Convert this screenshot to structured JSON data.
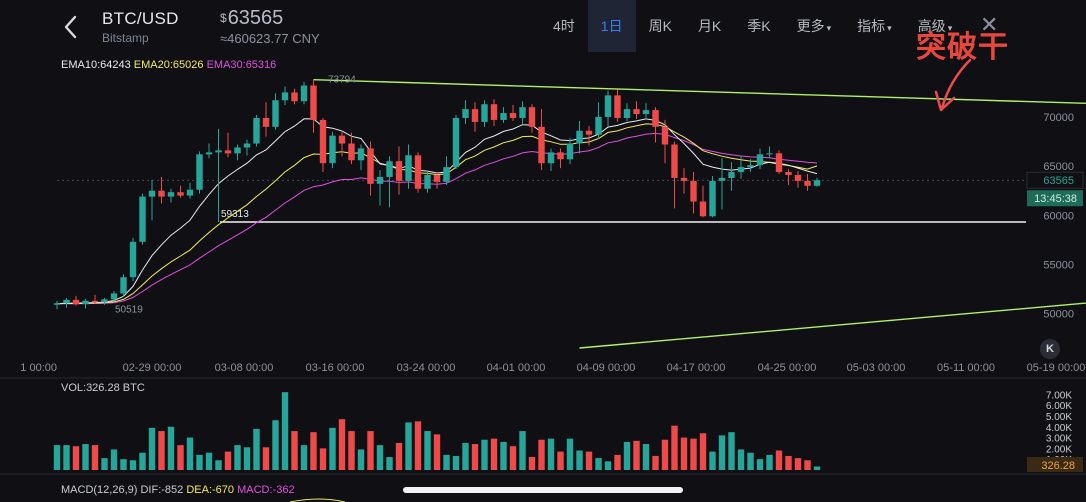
{
  "header": {
    "pair": "BTC/USD",
    "exchange": "Bitstamp",
    "currency_symbol": "$",
    "price": "63565",
    "cny": "≈460623.77 CNY",
    "tabs": [
      {
        "label": "4时",
        "active": false,
        "dropdown": false
      },
      {
        "label": "1日",
        "active": true,
        "dropdown": false
      },
      {
        "label": "周K",
        "active": false,
        "dropdown": false
      },
      {
        "label": "月K",
        "active": false,
        "dropdown": false
      },
      {
        "label": "季K",
        "active": false,
        "dropdown": false
      },
      {
        "label": "更多",
        "active": false,
        "dropdown": true
      },
      {
        "label": "指标",
        "active": false,
        "dropdown": true
      },
      {
        "label": "高级",
        "active": false,
        "dropdown": true
      }
    ],
    "close_icon": "close-icon",
    "back_icon": "back-arrow-icon"
  },
  "annotation": {
    "text": "突破干",
    "color": "#e8473e"
  },
  "indicators": {
    "ema10_label": "EMA10:64243",
    "ema20_label": "EMA20:65026",
    "ema30_label": "EMA30:65316",
    "vol_label": "VOL:326.28 BTC",
    "macd_label": "MACD(12,26,9)",
    "dif_label": "DIF:-852",
    "dea_label": "DEA:-670",
    "macd_value_label": "MACD:-362"
  },
  "colors": {
    "up": "#26a69a",
    "down": "#ef4a4a",
    "ema10": "#e9ebef",
    "ema20": "#f3ec5c",
    "ema30": "#e04fe0",
    "trendline": "#b4f06a",
    "background": "#101014",
    "price_tag": "#1f6b59"
  },
  "chart_data": {
    "type": "candlestick",
    "x_tick_labels": [
      "1 00:00",
      "02-29 00:00",
      "03-08 00:00",
      "03-16 00:00",
      "03-24 00:00",
      "04-01 00:00",
      "04-09 00:00",
      "04-17 00:00",
      "04-25 00:00",
      "05-03 00:00",
      "05-11 00:00",
      "05-19 00:00"
    ],
    "y_ticks": [
      50000,
      55000,
      60000,
      65000,
      70000
    ],
    "y_tick_labels": [
      "50000",
      "55000",
      "60000",
      "65000",
      "70000"
    ],
    "ylim": [
      46500,
      76000
    ],
    "current_price_label": "63565",
    "current_price": 63565,
    "countdown_label": "13:45:38",
    "high_label": "73794",
    "low_label": "50519",
    "support_label": "59313",
    "support_level": 59313,
    "candles": [
      {
        "o": 50900,
        "h": 51300,
        "l": 50450,
        "c": 51050
      },
      {
        "o": 51050,
        "h": 51600,
        "l": 50600,
        "c": 51400
      },
      {
        "o": 51400,
        "h": 51800,
        "l": 50800,
        "c": 50950
      },
      {
        "o": 50950,
        "h": 51500,
        "l": 50519,
        "c": 51300
      },
      {
        "o": 51300,
        "h": 51900,
        "l": 51000,
        "c": 51150
      },
      {
        "o": 51150,
        "h": 51600,
        "l": 50900,
        "c": 51450
      },
      {
        "o": 51450,
        "h": 52300,
        "l": 51200,
        "c": 52050
      },
      {
        "o": 52050,
        "h": 54000,
        "l": 51700,
        "c": 53700
      },
      {
        "o": 53700,
        "h": 57700,
        "l": 53300,
        "c": 57300
      },
      {
        "o": 57300,
        "h": 62200,
        "l": 57000,
        "c": 61900
      },
      {
        "o": 61900,
        "h": 63600,
        "l": 59500,
        "c": 62500
      },
      {
        "o": 62500,
        "h": 63900,
        "l": 61200,
        "c": 61900
      },
      {
        "o": 61900,
        "h": 62700,
        "l": 61300,
        "c": 62350
      },
      {
        "o": 62350,
        "h": 63000,
        "l": 61800,
        "c": 62000
      },
      {
        "o": 62000,
        "h": 63300,
        "l": 61700,
        "c": 62600
      },
      {
        "o": 62600,
        "h": 66500,
        "l": 62200,
        "c": 66200
      },
      {
        "o": 66200,
        "h": 67300,
        "l": 65800,
        "c": 66400
      },
      {
        "o": 66400,
        "h": 68800,
        "l": 59313,
        "c": 66600
      },
      {
        "o": 66600,
        "h": 68400,
        "l": 65900,
        "c": 66300
      },
      {
        "o": 66300,
        "h": 67200,
        "l": 65600,
        "c": 66900
      },
      {
        "o": 66900,
        "h": 67700,
        "l": 66100,
        "c": 67300
      },
      {
        "o": 67300,
        "h": 70200,
        "l": 67000,
        "c": 69900
      },
      {
        "o": 69900,
        "h": 71500,
        "l": 68000,
        "c": 69000
      },
      {
        "o": 69000,
        "h": 72400,
        "l": 68700,
        "c": 71700
      },
      {
        "o": 71700,
        "h": 73100,
        "l": 71200,
        "c": 72500
      },
      {
        "o": 72500,
        "h": 72900,
        "l": 71300,
        "c": 71600
      },
      {
        "o": 71600,
        "h": 73600,
        "l": 71300,
        "c": 73200
      },
      {
        "o": 73200,
        "h": 73794,
        "l": 68400,
        "c": 69700
      },
      {
        "o": 69700,
        "h": 69900,
        "l": 64400,
        "c": 65300
      },
      {
        "o": 65300,
        "h": 68500,
        "l": 64800,
        "c": 68100
      },
      {
        "o": 68100,
        "h": 68600,
        "l": 66000,
        "c": 67300
      },
      {
        "o": 67300,
        "h": 68400,
        "l": 65200,
        "c": 65600
      },
      {
        "o": 65600,
        "h": 67200,
        "l": 64600,
        "c": 66800
      },
      {
        "o": 66800,
        "h": 67500,
        "l": 62000,
        "c": 63200
      },
      {
        "o": 63200,
        "h": 64600,
        "l": 61000,
        "c": 63900
      },
      {
        "o": 63900,
        "h": 66000,
        "l": 60800,
        "c": 65500
      },
      {
        "o": 65500,
        "h": 67000,
        "l": 62100,
        "c": 63500
      },
      {
        "o": 63500,
        "h": 67200,
        "l": 62700,
        "c": 66100
      },
      {
        "o": 66100,
        "h": 66400,
        "l": 62300,
        "c": 62700
      },
      {
        "o": 62700,
        "h": 64500,
        "l": 62300,
        "c": 64100
      },
      {
        "o": 64100,
        "h": 64400,
        "l": 62700,
        "c": 63400
      },
      {
        "o": 63400,
        "h": 66000,
        "l": 63100,
        "c": 64900
      },
      {
        "o": 64900,
        "h": 70200,
        "l": 64700,
        "c": 69900
      },
      {
        "o": 69900,
        "h": 71700,
        "l": 69300,
        "c": 70800
      },
      {
        "o": 70800,
        "h": 71500,
        "l": 68500,
        "c": 69500
      },
      {
        "o": 69500,
        "h": 71700,
        "l": 69000,
        "c": 71300
      },
      {
        "o": 71300,
        "h": 71800,
        "l": 69100,
        "c": 69700
      },
      {
        "o": 69700,
        "h": 71000,
        "l": 69400,
        "c": 70400
      },
      {
        "o": 70400,
        "h": 71200,
        "l": 69600,
        "c": 69900
      },
      {
        "o": 69900,
        "h": 71600,
        "l": 69300,
        "c": 71000
      },
      {
        "o": 71000,
        "h": 71300,
        "l": 68400,
        "c": 69000
      },
      {
        "o": 69000,
        "h": 70800,
        "l": 64600,
        "c": 65300
      },
      {
        "o": 65300,
        "h": 66800,
        "l": 64500,
        "c": 66400
      },
      {
        "o": 66400,
        "h": 66800,
        "l": 64800,
        "c": 65700
      },
      {
        "o": 65700,
        "h": 67900,
        "l": 65200,
        "c": 67300
      },
      {
        "o": 67300,
        "h": 69600,
        "l": 66300,
        "c": 68600
      },
      {
        "o": 68600,
        "h": 69100,
        "l": 67100,
        "c": 68200
      },
      {
        "o": 68200,
        "h": 71500,
        "l": 67800,
        "c": 70000
      },
      {
        "o": 70000,
        "h": 72700,
        "l": 69000,
        "c": 72200
      },
      {
        "o": 72200,
        "h": 72800,
        "l": 69500,
        "c": 69900
      },
      {
        "o": 69900,
        "h": 71400,
        "l": 69600,
        "c": 70800
      },
      {
        "o": 70800,
        "h": 71600,
        "l": 69800,
        "c": 70300
      },
      {
        "o": 70300,
        "h": 71400,
        "l": 69700,
        "c": 70700
      },
      {
        "o": 70700,
        "h": 71000,
        "l": 67400,
        "c": 69000
      },
      {
        "o": 69000,
        "h": 69700,
        "l": 65300,
        "c": 67200
      },
      {
        "o": 67200,
        "h": 67500,
        "l": 60700,
        "c": 63800
      },
      {
        "o": 63800,
        "h": 64800,
        "l": 62200,
        "c": 63500
      },
      {
        "o": 63500,
        "h": 64400,
        "l": 60200,
        "c": 61400
      },
      {
        "o": 61400,
        "h": 63000,
        "l": 59800,
        "c": 59900
      },
      {
        "o": 59900,
        "h": 64000,
        "l": 59800,
        "c": 63500
      },
      {
        "o": 63500,
        "h": 65800,
        "l": 60600,
        "c": 63800
      },
      {
        "o": 63800,
        "h": 65400,
        "l": 62500,
        "c": 64400
      },
      {
        "o": 64400,
        "h": 66000,
        "l": 63700,
        "c": 64900
      },
      {
        "o": 64900,
        "h": 65700,
        "l": 64400,
        "c": 65100
      },
      {
        "o": 65100,
        "h": 66800,
        "l": 64700,
        "c": 66200
      },
      {
        "o": 66200,
        "h": 67000,
        "l": 65800,
        "c": 66300
      },
      {
        "o": 66300,
        "h": 66600,
        "l": 64200,
        "c": 64400
      },
      {
        "o": 64400,
        "h": 64700,
        "l": 63100,
        "c": 64100
      },
      {
        "o": 64100,
        "h": 64500,
        "l": 62800,
        "c": 63500
      },
      {
        "o": 63500,
        "h": 64200,
        "l": 62500,
        "c": 63000
      },
      {
        "o": 63000,
        "h": 63800,
        "l": 62900,
        "c": 63565
      }
    ],
    "ema10": [
      51000,
      51070,
      51050,
      51100,
      51110,
      51170,
      51330,
      51760,
      52770,
      54430,
      55900,
      57000,
      57970,
      58700,
      59500,
      60900,
      62100,
      63220,
      64000,
      64670,
      65300,
      66140,
      66650,
      67570,
      68510,
      69070,
      69820,
      69800,
      69000,
      68860,
      68570,
      68030,
      67810,
      66520,
      65230,
      65060,
      64780,
      65020,
      64600,
      64500,
      64300,
      64400,
      65400,
      66400,
      66930,
      67730,
      68070,
      68530,
      68780,
      69210,
      69170,
      68470,
      68090,
      67660,
      67600,
      67780,
      67860,
      68250,
      68970,
      69140,
      69440,
      69600,
      69800,
      69650,
      69200,
      68200,
      67300,
      66300,
      65200,
      64900,
      64700,
      64600,
      64700,
      64800,
      65200,
      65400,
      65300,
      65100,
      64800,
      64500,
      64243
    ],
    "ema20": [
      51000,
      51040,
      51030,
      51060,
      51070,
      51100,
      51190,
      51440,
      52030,
      52920,
      53820,
      54570,
      55260,
      55860,
      56460,
      57390,
      58250,
      59040,
      59730,
      60410,
      61070,
      61910,
      62660,
      63520,
      64410,
      65090,
      65870,
      66230,
      66190,
      66370,
      66460,
      66300,
      66360,
      65860,
      65300,
      65040,
      64670,
      64610,
      64330,
      64260,
      64140,
      64210,
      64890,
      65650,
      66020,
      66610,
      66950,
      67380,
      67620,
      68000,
      68040,
      67680,
      67480,
      67220,
      67220,
      67370,
      67460,
      67810,
      68430,
      68580,
      68900,
      69100,
      69300,
      69270,
      69020,
      68460,
      67950,
      67320,
      66570,
      66270,
      66010,
      65800,
      65640,
      65510,
      65480,
      65380,
      65200,
      65060,
      64880,
      64700,
      65026
    ],
    "ema30": [
      51000,
      51020,
      51010,
      51030,
      51040,
      51060,
      51110,
      51280,
      51650,
      52250,
      52900,
      53460,
      53990,
      54460,
      54940,
      55630,
      56270,
      56910,
      57460,
      58020,
      58570,
      59250,
      59800,
      60530,
      61250,
      61870,
      62530,
      62910,
      63080,
      63400,
      63640,
      63640,
      63800,
      63660,
      63480,
      63460,
      63340,
      63400,
      63220,
      63200,
      63150,
      63250,
      63720,
      64280,
      64620,
      65080,
      65390,
      65750,
      66000,
      66350,
      66490,
      66350,
      66290,
      66190,
      66260,
      66440,
      66570,
      66900,
      67370,
      67550,
      67860,
      68050,
      68260,
      68320,
      68240,
      67900,
      67600,
      67200,
      66700,
      66500,
      66300,
      66150,
      66030,
      65940,
      65900,
      65850,
      65700,
      65600,
      65500,
      65400,
      65316
    ],
    "trendline_upper": {
      "from": {
        "index": 27,
        "value": 73794
      },
      "to": {
        "index": 118,
        "value": 71100
      }
    },
    "trendline_lower": {
      "from": {
        "index": 55,
        "value": 46500
      },
      "to": {
        "index": 118,
        "value": 51900
      }
    },
    "volume": {
      "y_tick_labels": [
        "7.00K",
        "6.00K",
        "5.00K",
        "4.00K",
        "3.00K",
        "2.00K",
        "1.00K"
      ],
      "y_ticks": [
        7000,
        6000,
        5000,
        4000,
        3000,
        2000,
        1000
      ],
      "ylim": [
        0,
        7400
      ],
      "current_label": "326.28",
      "values": [
        2300,
        2300,
        2200,
        2400,
        2300,
        1100,
        1900,
        1000,
        900,
        1600,
        3900,
        3600,
        4000,
        2300,
        3000,
        1400,
        1600,
        900,
        1700,
        2300,
        2100,
        3800,
        2100,
        4600,
        7200,
        3600,
        2300,
        3500,
        2000,
        3900,
        4700,
        3600,
        1900,
        3600,
        2300,
        1200,
        2500,
        4400,
        4500,
        3600,
        3300,
        1400,
        1300,
        2500,
        2400,
        2800,
        2900,
        2600,
        2200,
        3600,
        1200,
        2800,
        2900,
        1700,
        2900,
        1800,
        1700,
        1100,
        800,
        1400,
        2600,
        2700,
        2400,
        1300,
        2800,
        4100,
        3000,
        2900,
        3400,
        1700,
        3200,
        3500,
        1900,
        1600,
        1000,
        1400,
        1800,
        1300,
        1100,
        900,
        326
      ]
    }
  }
}
